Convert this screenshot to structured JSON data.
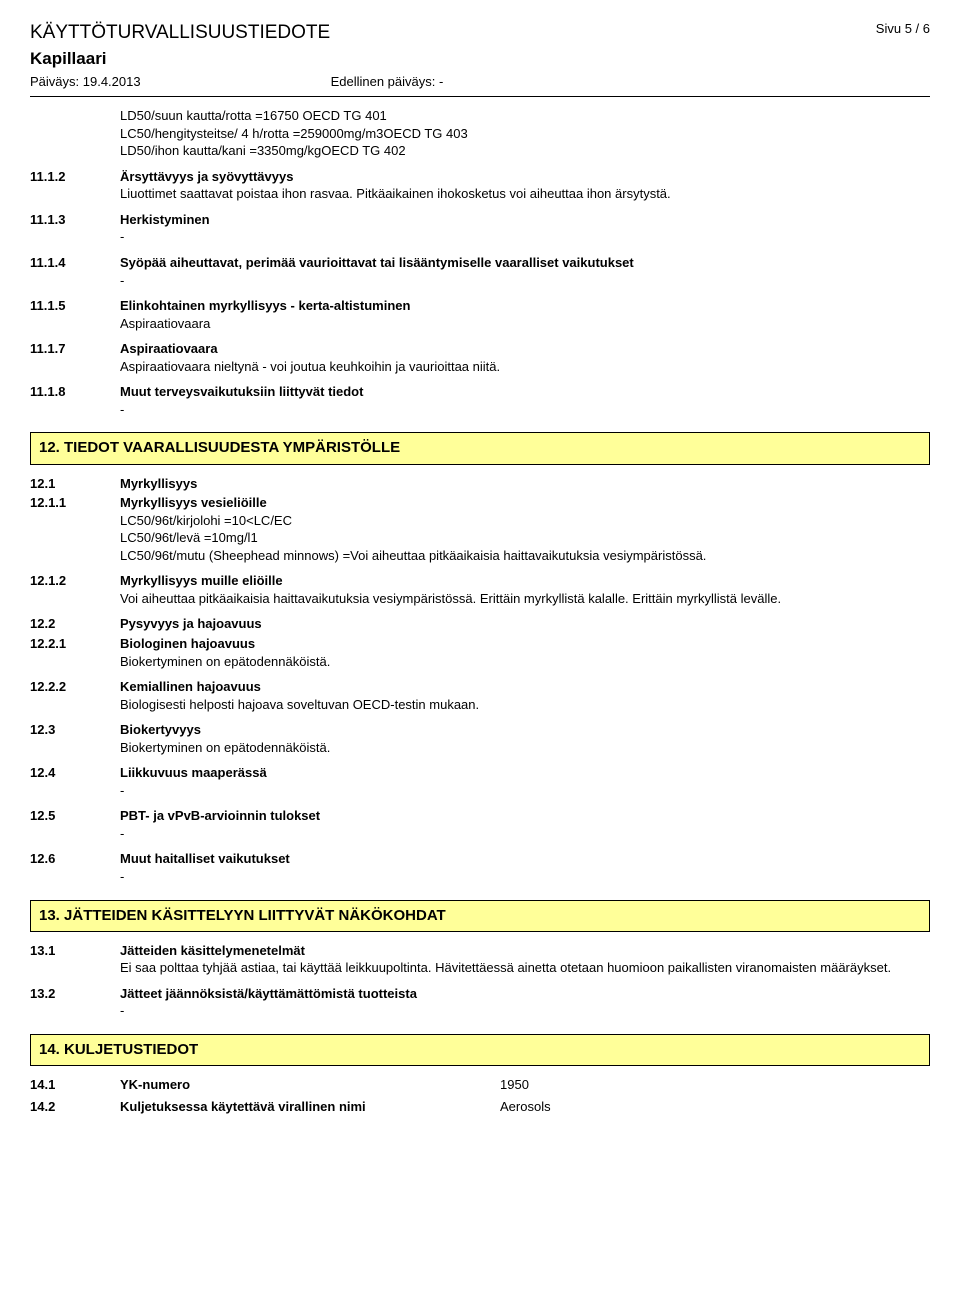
{
  "header": {
    "doc_title": "KÄYTTÖTURVALLISUUSTIEDOTE",
    "page_label": "Sivu  5 / 6",
    "product": "Kapillaari",
    "date_label": "Päiväys: 19.4.2013",
    "prev_date_label": "Edellinen päiväys: -"
  },
  "intro_lines": [
    "LD50/suun kautta/rotta =16750 OECD TG 401",
    "LC50/hengitysteitse/ 4 h/rotta =259000mg/m3OECD TG 403",
    "LD50/ihon kautta/kani =3350mg/kgOECD TG 402"
  ],
  "s11": {
    "e2": {
      "num": "11.1.2",
      "label": "Ärsyttävyys ja syövyttävyys",
      "text": "Liuottimet saattavat poistaa ihon rasvaa. Pitkäaikainen ihokosketus voi aiheuttaa ihon ärsytystä."
    },
    "e3": {
      "num": "11.1.3",
      "label": "Herkistyminen",
      "text": "-"
    },
    "e4": {
      "num": "11.1.4",
      "label": "Syöpää aiheuttavat, perimää vaurioittavat tai lisääntymiselle vaaralliset vaikutukset",
      "text": "-"
    },
    "e5": {
      "num": "11.1.5",
      "label": "Elinkohtainen myrkyllisyys - kerta-altistuminen",
      "text": "Aspiraatiovaara"
    },
    "e7": {
      "num": "11.1.7",
      "label": "Aspiraatiovaara",
      "text": "Aspiraatiovaara nieltynä - voi joutua keuhkoihin ja vaurioittaa niitä."
    },
    "e8": {
      "num": "11.1.8",
      "label": "Muut terveysvaikutuksiin liittyvät tiedot",
      "text": "-"
    }
  },
  "section12": {
    "title": "12. TIEDOT VAARALLISUUDESTA YMPÄRISTÖLLE",
    "e1": {
      "num": "12.1",
      "label": "Myrkyllisyys"
    },
    "e11": {
      "num": "12.1.1",
      "label": "Myrkyllisyys vesieliöille",
      "lines": [
        "LC50/96t/kirjolohi =10<LC/EC",
        "LC50/96t/levä =10mg/l1",
        "LC50/96t/mutu (Sheephead minnows) =Voi aiheuttaa pitkäaikaisia haittavaikutuksia vesiympäristössä."
      ]
    },
    "e12": {
      "num": "12.1.2",
      "label": "Myrkyllisyys muille eliöille",
      "text": "Voi aiheuttaa pitkäaikaisia haittavaikutuksia vesiympäristössä. Erittäin myrkyllistä kalalle. Erittäin myrkyllistä levälle."
    },
    "e2": {
      "num": "12.2",
      "label": "Pysyvyys ja hajoavuus"
    },
    "e21": {
      "num": "12.2.1",
      "label": "Biologinen hajoavuus",
      "text": "Biokertyminen on epätodennäköistä."
    },
    "e22": {
      "num": "12.2.2",
      "label": "Kemiallinen hajoavuus",
      "text": "Biologisesti helposti hajoava soveltuvan OECD-testin mukaan."
    },
    "e3": {
      "num": "12.3",
      "label": "Biokertyvyys",
      "text": "Biokertyminen on epätodennäköistä."
    },
    "e4": {
      "num": "12.4",
      "label": "Liikkuvuus maaperässä",
      "text": "-"
    },
    "e5": {
      "num": "12.5",
      "label": "PBT- ja vPvB-arvioinnin tulokset",
      "text": "-"
    },
    "e6": {
      "num": "12.6",
      "label": "Muut haitalliset vaikutukset",
      "text": "-"
    }
  },
  "section13": {
    "title": "13. JÄTTEIDEN KÄSITTELYYN LIITTYVÄT NÄKÖKOHDAT",
    "e1": {
      "num": "13.1",
      "label": "Jätteiden käsittelymenetelmät",
      "text": "Ei saa polttaa tyhjää astiaa, tai käyttää leikkuupoltinta. Hävitettäessä ainetta otetaan huomioon paikallisten viranomaisten määräykset."
    },
    "e2": {
      "num": "13.2",
      "label": "Jätteet jäännöksistä/käyttämättömistä tuotteista",
      "text": "-"
    }
  },
  "section14": {
    "title": "14. KULJETUSTIEDOT",
    "r1": {
      "num": "14.1",
      "key": "YK-numero",
      "val": "1950"
    },
    "r2": {
      "num": "14.2",
      "key": "Kuljetuksessa käytettävä virallinen nimi",
      "val": "Aerosols"
    }
  }
}
